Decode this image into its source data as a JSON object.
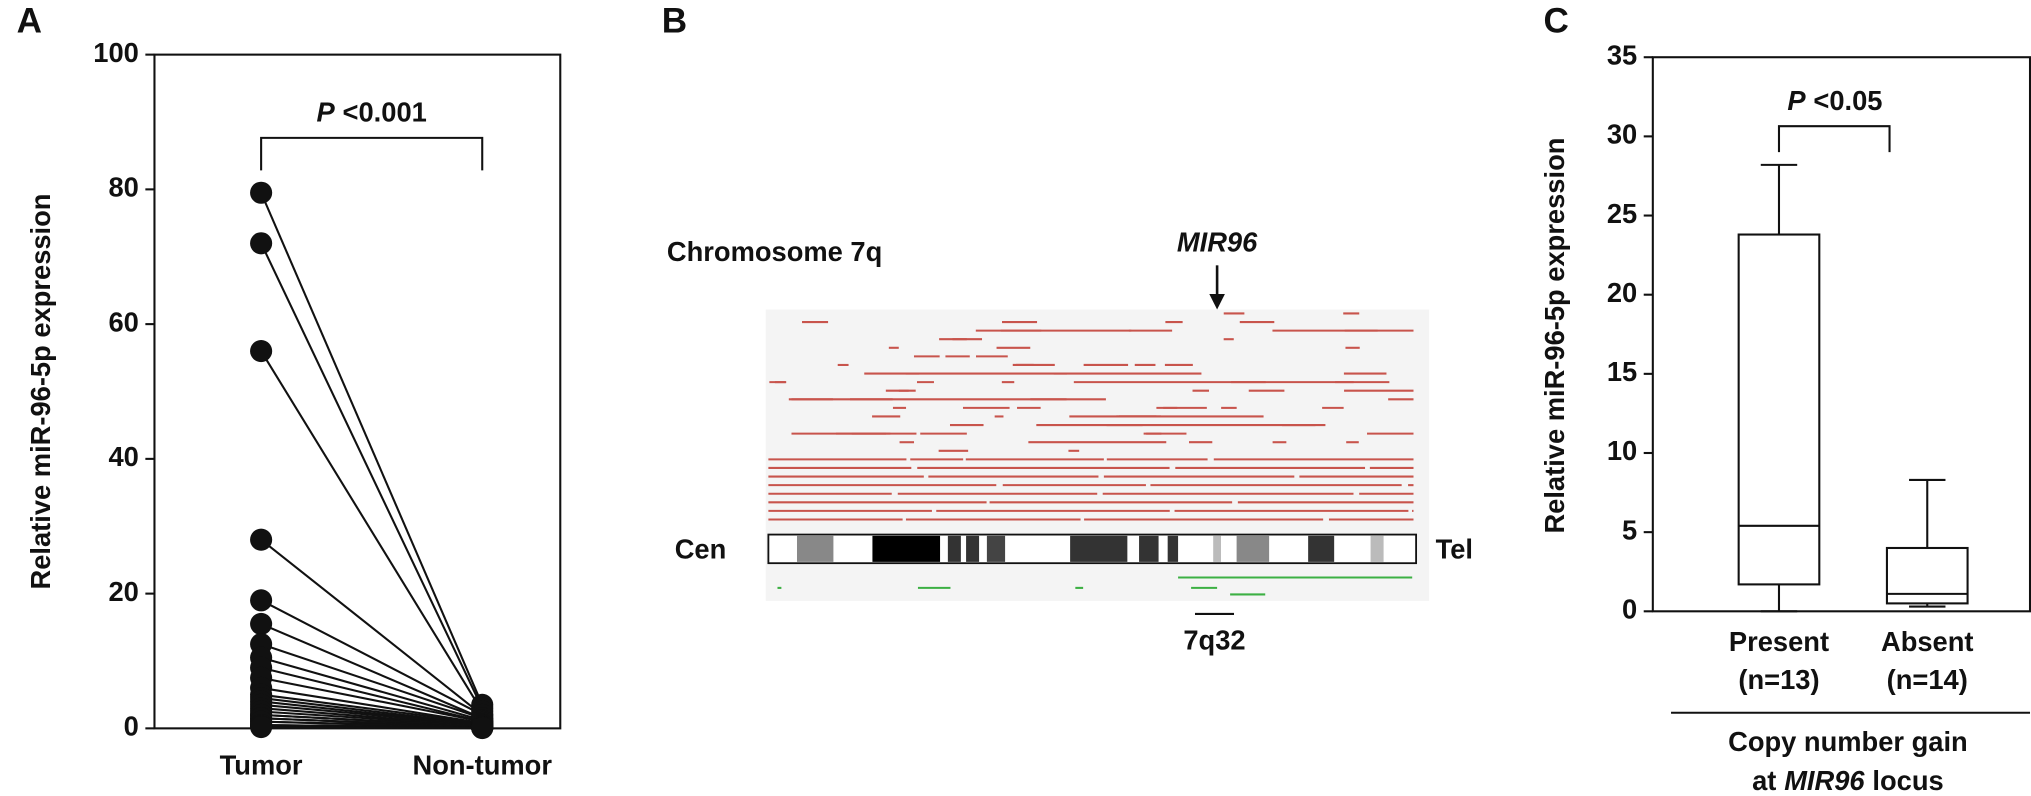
{
  "chart_data": [
    {
      "type": "paired",
      "panel": "A",
      "y_label": "Relative miR-96-5p expression",
      "categories": [
        "Tumor",
        "Non-tumor"
      ],
      "values": [
        [
          79.5,
          72,
          56,
          28,
          19,
          15.5,
          12.5,
          10.5,
          9,
          7.5,
          6,
          5,
          4.5,
          4,
          3.5,
          3,
          2.5,
          2,
          2,
          1.5,
          1.5,
          1,
          1,
          0.5,
          0.5,
          0.3,
          0.2
        ],
        [
          3.5,
          3,
          2.5,
          2,
          2,
          1.5,
          1.5,
          1.2,
          1,
          1,
          0.8,
          0.8,
          0.6,
          0.5,
          0.5,
          0.4,
          0.4,
          0.3,
          0.3,
          0.2,
          0.2,
          0.2,
          0.1,
          0.1,
          0.1,
          0.1,
          0.05
        ]
      ],
      "p_symbol": "P",
      "p_value": "<0.001",
      "ylim": [
        0,
        100
      ],
      "yticks": [
        0,
        20,
        40,
        60,
        80,
        100
      ]
    },
    {
      "type": "box",
      "panel": "C",
      "y_label": "Relative miR-96-5p expression",
      "categories": [
        "Present",
        "Absent"
      ],
      "category_sublabels": [
        "(n=13)",
        "(n=14)"
      ],
      "boxes": [
        {
          "min": 0,
          "q1": 1.7,
          "median": 5.4,
          "q3": 23.8,
          "max": 28.2
        },
        {
          "min": 0.3,
          "q1": 0.5,
          "median": 1.1,
          "q3": 4.0,
          "max": 8.3
        }
      ],
      "p_symbol": "P",
      "p_value": "<0.05",
      "x_label_line1": "Copy number gain",
      "x_label_line2": [
        "at",
        "MIR96",
        "locus"
      ],
      "ylim": [
        0,
        35
      ],
      "yticks": [
        0,
        5,
        10,
        15,
        20,
        25,
        30,
        35
      ]
    }
  ],
  "diagram": {
    "panel": "B",
    "title": "Chromosome 7q",
    "gene": "MIR96",
    "left_end": "Cen",
    "right_end": "Tel",
    "band": "7q32"
  }
}
